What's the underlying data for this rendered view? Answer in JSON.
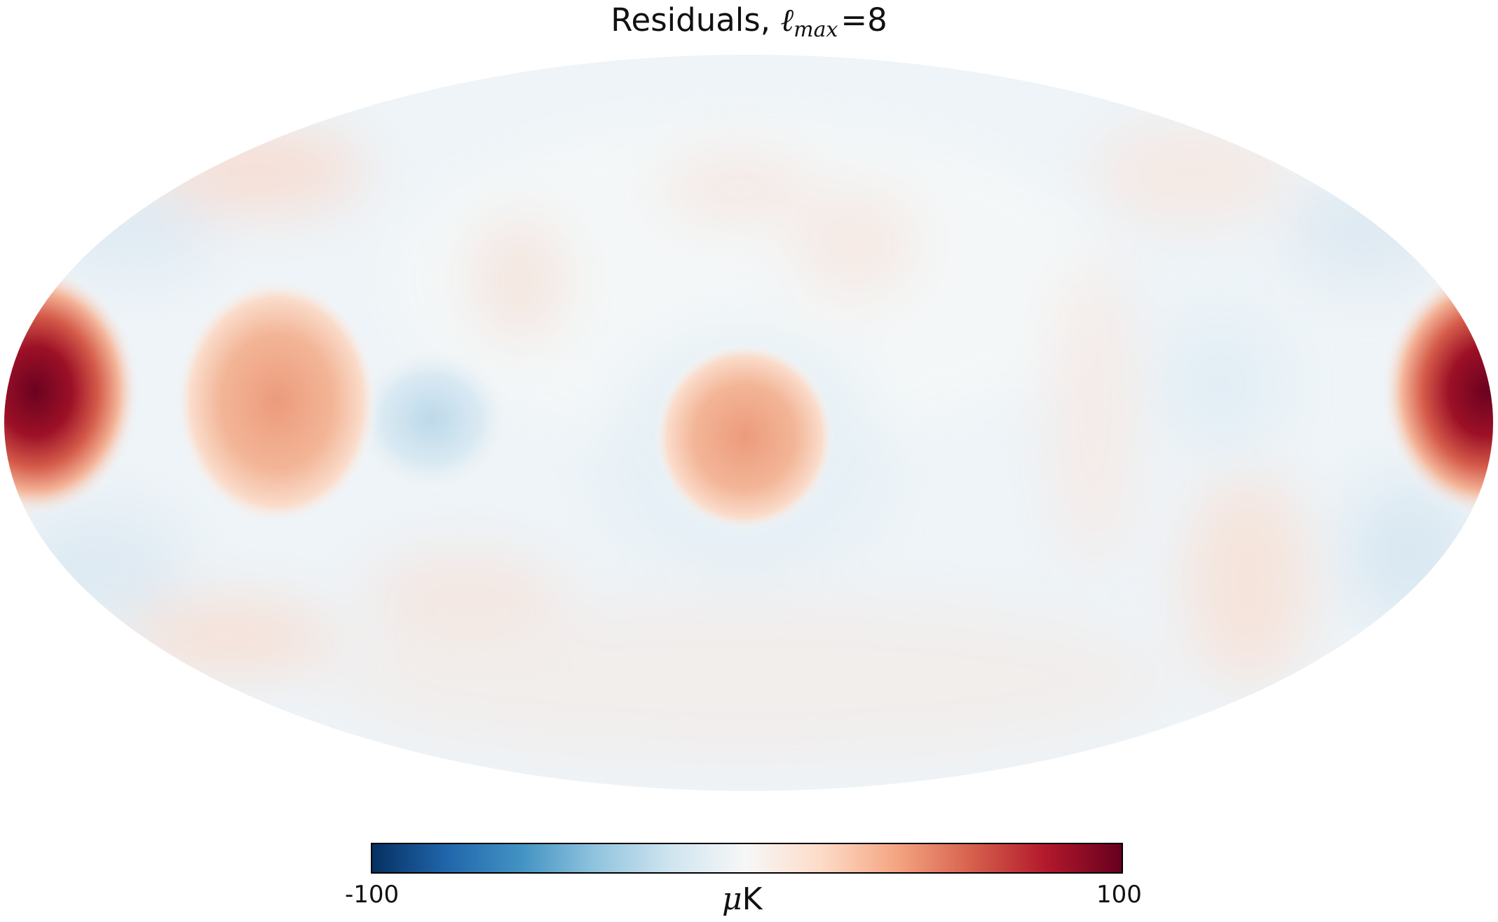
{
  "title": {
    "prefix": "Residuals, ",
    "ell": "ℓ",
    "subscript": "max",
    "suffix": "=8"
  },
  "colorbar": {
    "colormap": "RdBu_r",
    "min_label": "-100",
    "max_label": "100",
    "unit_mu": "μ",
    "unit_k": "K",
    "min": -100,
    "max": 100,
    "stops": [
      "#053061",
      "#2166ac",
      "#4393c3",
      "#92c5de",
      "#d1e5f0",
      "#f7f7f7",
      "#fddbc7",
      "#f4a582",
      "#d6604d",
      "#b2182b",
      "#67001f"
    ]
  },
  "map": {
    "projection": "mollweide",
    "background": "#f7f7f7"
  }
}
